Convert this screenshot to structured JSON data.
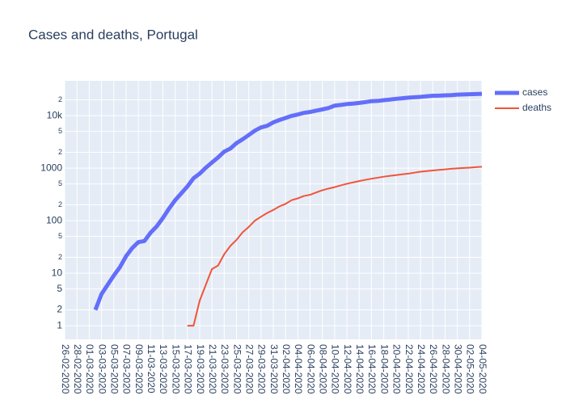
{
  "chart_data": {
    "type": "line",
    "title": "Cases and deaths, Portugal",
    "categories": [
      "26-02-2020",
      null,
      "28-02-2020",
      null,
      "01-03-2020",
      null,
      "03-03-2020",
      null,
      "05-03-2020",
      null,
      "07-03-2020",
      null,
      "09-03-2020",
      null,
      "11-03-2020",
      null,
      "13-03-2020",
      null,
      "15-03-2020",
      null,
      "17-03-2020",
      null,
      "19-03-2020",
      null,
      "21-03-2020",
      null,
      "23-03-2020",
      null,
      "25-03-2020",
      null,
      "27-03-2020",
      null,
      "29-03-2020",
      null,
      "31-03-2020",
      null,
      "02-04-2020",
      null,
      "04-04-2020",
      null,
      "06-04-2020",
      null,
      "08-04-2020",
      null,
      "10-04-2020",
      null,
      "12-04-2020",
      null,
      "14-04-2020",
      null,
      "16-04-2020",
      null,
      "18-04-2020",
      null,
      "20-04-2020",
      null,
      "22-04-2020",
      null,
      "24-04-2020",
      null,
      "26-04-2020",
      null,
      "28-04-2020",
      null,
      "30-04-2020",
      null,
      "02-05-2020",
      null,
      "04-05-2020"
    ],
    "series": [
      {
        "name": "cases",
        "color": "#636efa",
        "width": 5,
        "values": [
          null,
          null,
          null,
          null,
          null,
          2,
          4,
          6,
          9,
          13,
          21,
          30,
          39,
          41,
          59,
          78,
          112,
          169,
          245,
          331,
          448,
          642,
          785,
          1020,
          1280,
          1600,
          2060,
          2362,
          2995,
          3544,
          4268,
          5170,
          5962,
          6408,
          7443,
          8251,
          9034,
          9886,
          10524,
          11278,
          11730,
          12442,
          13141,
          13956,
          15472,
          15987,
          16585,
          16934,
          17448,
          18091,
          18841,
          19022,
          19685,
          20206,
          20863,
          21379,
          21982,
          22353,
          22797,
          23392,
          23864,
          24027,
          24322,
          24505,
          25045,
          25351,
          25524,
          25702,
          25990
        ]
      },
      {
        "name": "deaths",
        "color": "#ef553b",
        "width": 2,
        "values": [
          null,
          null,
          null,
          null,
          null,
          null,
          null,
          null,
          null,
          null,
          null,
          null,
          null,
          null,
          null,
          null,
          null,
          null,
          null,
          null,
          1,
          1,
          3,
          6,
          12,
          14,
          23,
          33,
          43,
          60,
          76,
          100,
          119,
          140,
          160,
          187,
          209,
          246,
          266,
          295,
          311,
          345,
          380,
          409,
          435,
          470,
          504,
          535,
          567,
          599,
          629,
          657,
          687,
          714,
          735,
          762,
          785,
          820,
          854,
          880,
          903,
          928,
          948,
          973,
          989,
          1007,
          1023,
          1043,
          1063
        ]
      }
    ],
    "ylim": [
      0.55,
      46000
    ],
    "yticks": [
      1,
      2,
      5,
      10,
      {
        "value": 20,
        "label": "2"
      },
      {
        "value": 50,
        "label": "5"
      },
      100,
      {
        "value": 200,
        "label": "2"
      },
      {
        "value": 500,
        "label": "5"
      },
      1000,
      {
        "value": 2000,
        "label": "2"
      },
      {
        "value": 5000,
        "label": "5"
      },
      {
        "value": 10000,
        "label": "10k"
      },
      {
        "value": 20000,
        "label": "2"
      }
    ],
    "log_y": true,
    "grid": true,
    "background": "#e5ecf6",
    "legend": "right"
  }
}
